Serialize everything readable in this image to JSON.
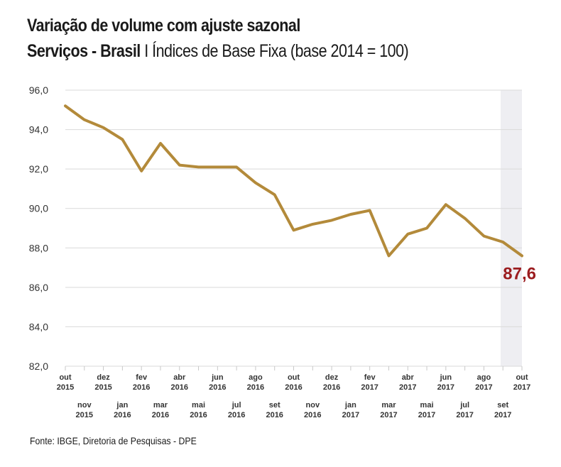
{
  "header": {
    "title": "Variação de volume com ajuste sazonal",
    "subtitle_bold": "Serviços - Brasil",
    "subtitle_sep": " I ",
    "subtitle_rest": "Índices de Base Fixa (base 2014 = 100)"
  },
  "footer": {
    "source": "Fonte: IBGE, Diretoria de Pesquisas - DPE"
  },
  "chart_data": {
    "type": "line",
    "title": "Variação de volume com ajuste sazonal",
    "subtitle": "Serviços - Brasil I Índices de Base Fixa (base 2014 = 100)",
    "xlabel": "",
    "ylabel": "",
    "ylim": [
      82.0,
      96.0
    ],
    "yticks": [
      "82,0",
      "84,0",
      "86,0",
      "88,0",
      "90,0",
      "92,0",
      "94,0",
      "96,0"
    ],
    "grid": "horizontal",
    "legend": "none",
    "line_color": "#b38a3a",
    "highlight_color": "#9b1c1f",
    "shade_color": "#eeeef2",
    "categories": [
      [
        "out",
        "2015"
      ],
      [
        "nov",
        "2015"
      ],
      [
        "dez",
        "2015"
      ],
      [
        "jan",
        "2016"
      ],
      [
        "fev",
        "2016"
      ],
      [
        "mar",
        "2016"
      ],
      [
        "abr",
        "2016"
      ],
      [
        "mai",
        "2016"
      ],
      [
        "jun",
        "2016"
      ],
      [
        "jul",
        "2016"
      ],
      [
        "ago",
        "2016"
      ],
      [
        "set",
        "2016"
      ],
      [
        "out",
        "2016"
      ],
      [
        "nov",
        "2016"
      ],
      [
        "dez",
        "2016"
      ],
      [
        "jan",
        "2017"
      ],
      [
        "fev",
        "2017"
      ],
      [
        "mar",
        "2017"
      ],
      [
        "abr",
        "2017"
      ],
      [
        "mai",
        "2017"
      ],
      [
        "jun",
        "2017"
      ],
      [
        "jul",
        "2017"
      ],
      [
        "ago",
        "2017"
      ],
      [
        "set",
        "2017"
      ],
      [
        "out",
        "2017"
      ]
    ],
    "values": [
      95.2,
      94.5,
      94.1,
      93.5,
      91.9,
      93.3,
      92.2,
      92.1,
      92.1,
      92.1,
      91.3,
      90.7,
      88.9,
      89.2,
      89.4,
      89.7,
      89.9,
      87.6,
      88.7,
      89.0,
      90.2,
      89.5,
      88.6,
      88.3,
      87.6
    ],
    "annotation": {
      "index": 24,
      "text": "87,6"
    }
  }
}
